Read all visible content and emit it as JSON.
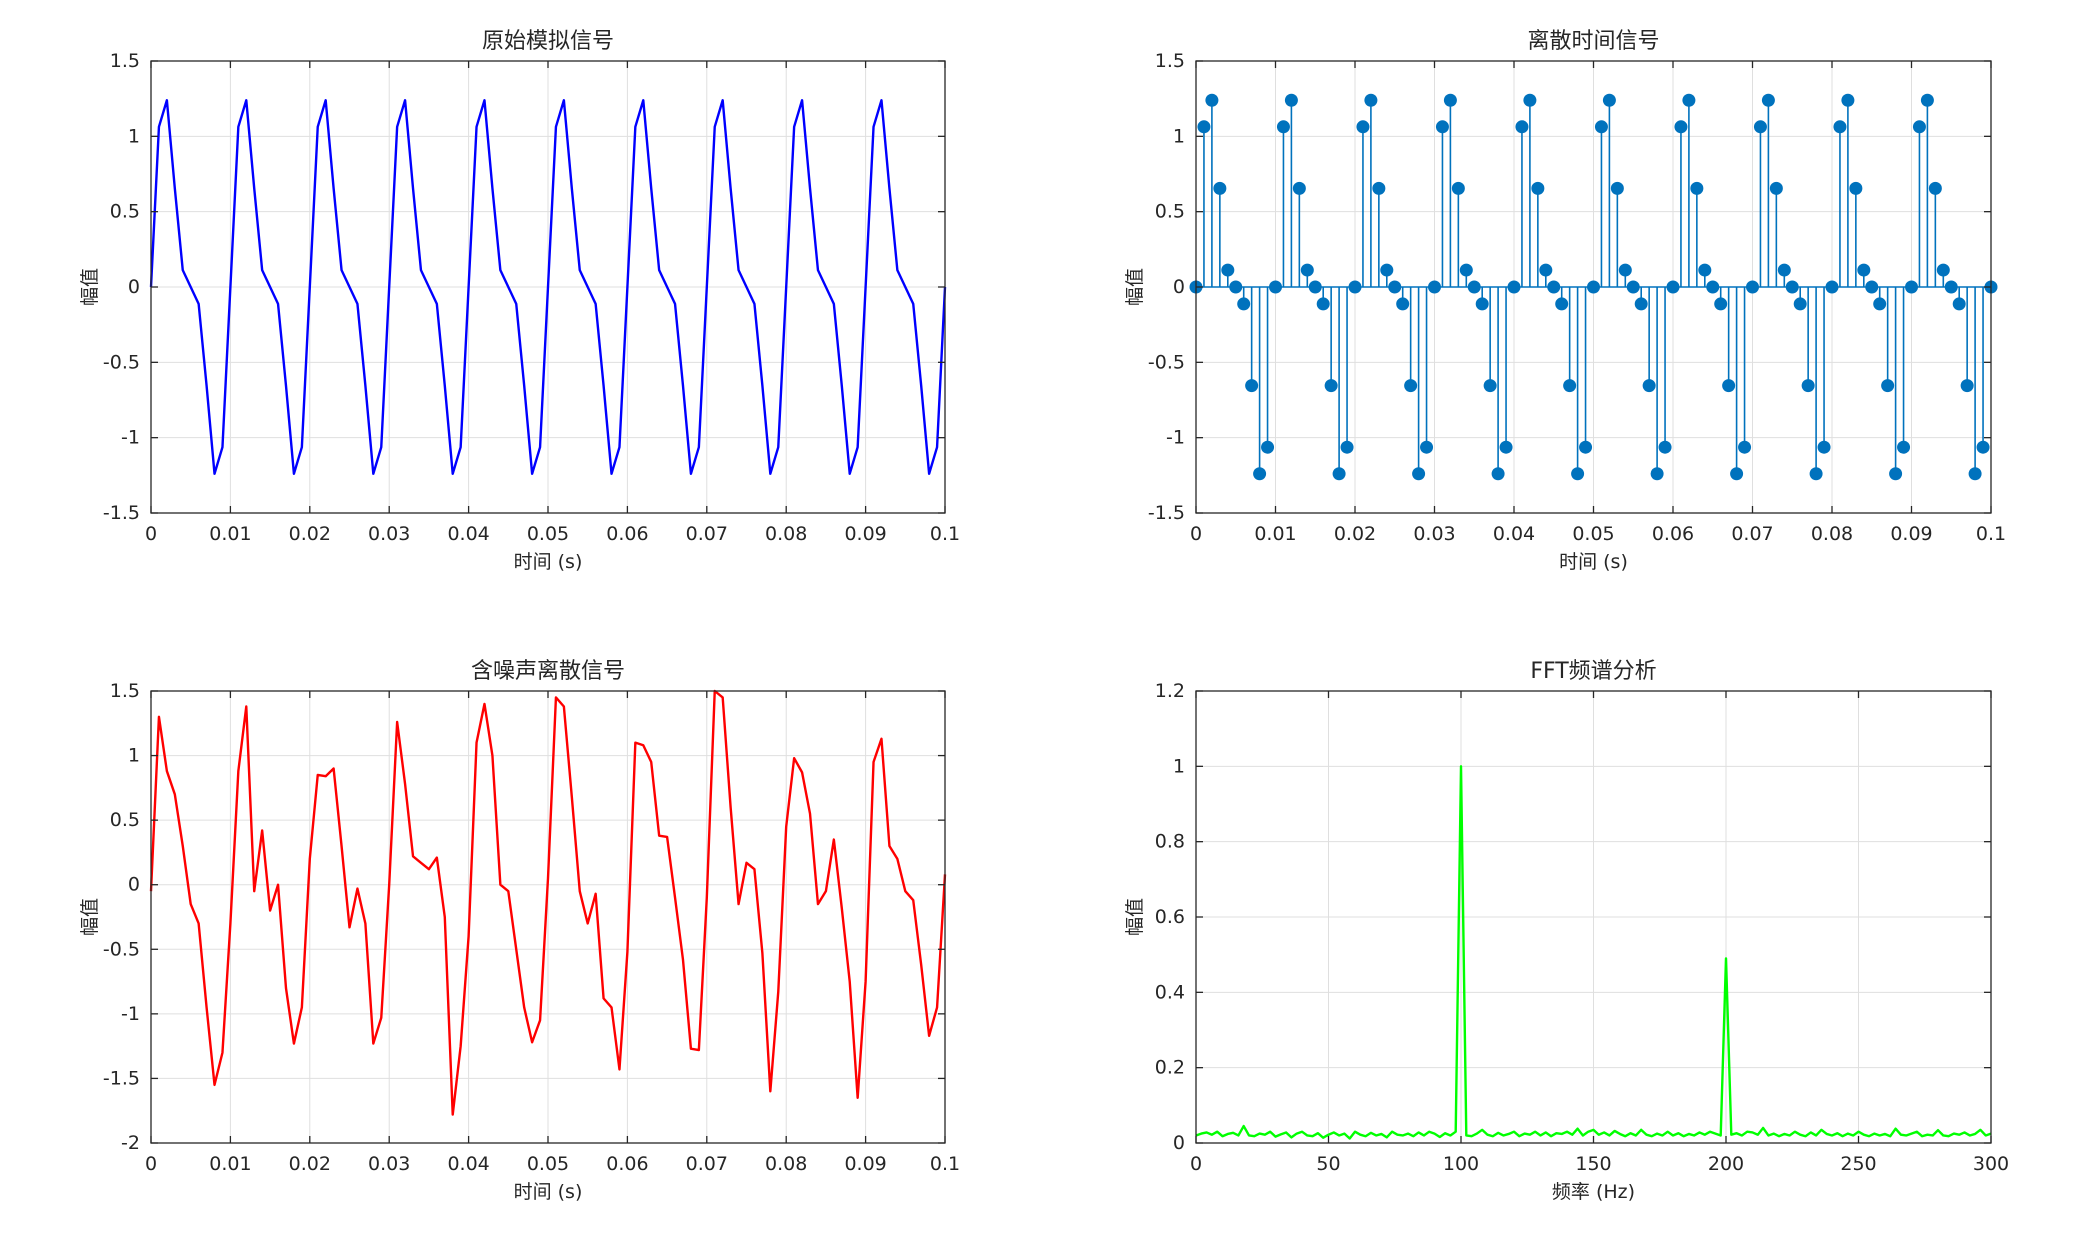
{
  "chart_data": [
    {
      "type": "line",
      "title": "原始模拟信号",
      "xlabel": "时间 (s)",
      "ylabel": "幅值",
      "xlim": [
        0,
        0.1
      ],
      "ylim": [
        -1.5,
        1.5
      ],
      "xticks": [
        0,
        0.01,
        0.02,
        0.03,
        0.04,
        0.05,
        0.06,
        0.07,
        0.08,
        0.09,
        0.1
      ],
      "xtick_labels": [
        "0",
        "0.01",
        "0.02",
        "0.03",
        "0.04",
        "0.05",
        "0.06",
        "0.07",
        "0.08",
        "0.09",
        "0.1"
      ],
      "yticks": [
        -1.5,
        -1,
        -0.5,
        0,
        0.5,
        1,
        1.5
      ],
      "ytick_labels": [
        "-1.5",
        "-1",
        "-0.5",
        "0",
        "0.5",
        "1",
        "1.5"
      ],
      "grid": true,
      "color": "#0000ff",
      "sample_period": 0.001,
      "cycle": [
        0,
        1.0633,
        1.2394,
        0.6545,
        0.1123,
        0,
        -0.1123,
        -0.6545,
        -1.2394,
        -1.0633
      ],
      "cycles": 10,
      "closing_value": 0
    },
    {
      "type": "stem",
      "title": "离散时间信号",
      "xlabel": "时间 (s)",
      "ylabel": "幅值",
      "xlim": [
        0,
        0.1
      ],
      "ylim": [
        -1.5,
        1.5
      ],
      "xticks": [
        0,
        0.01,
        0.02,
        0.03,
        0.04,
        0.05,
        0.06,
        0.07,
        0.08,
        0.09,
        0.1
      ],
      "xtick_labels": [
        "0",
        "0.01",
        "0.02",
        "0.03",
        "0.04",
        "0.05",
        "0.06",
        "0.07",
        "0.08",
        "0.09",
        "0.1"
      ],
      "yticks": [
        -1.5,
        -1,
        -0.5,
        0,
        0.5,
        1,
        1.5
      ],
      "ytick_labels": [
        "-1.5",
        "-1",
        "-0.5",
        "0",
        "0.5",
        "1",
        "1.5"
      ],
      "grid": true,
      "color": "#0072bd",
      "sample_period": 0.001,
      "cycle": [
        0,
        1.0633,
        1.2394,
        0.6545,
        0.1123,
        0,
        -0.1123,
        -0.6545,
        -1.2394,
        -1.0633
      ],
      "cycles": 10,
      "closing_value": 0
    },
    {
      "type": "line",
      "title": "含噪声离散信号",
      "xlabel": "时间 (s)",
      "ylabel": "幅值",
      "xlim": [
        0,
        0.1
      ],
      "ylim": [
        -2,
        1.5
      ],
      "xticks": [
        0,
        0.01,
        0.02,
        0.03,
        0.04,
        0.05,
        0.06,
        0.07,
        0.08,
        0.09,
        0.1
      ],
      "xtick_labels": [
        "0",
        "0.01",
        "0.02",
        "0.03",
        "0.04",
        "0.05",
        "0.06",
        "0.07",
        "0.08",
        "0.09",
        "0.1"
      ],
      "yticks": [
        -2,
        -1.5,
        -1,
        -0.5,
        0,
        0.5,
        1,
        1.5
      ],
      "ytick_labels": [
        "-2",
        "-1.5",
        "-1",
        "-0.5",
        "0",
        "0.5",
        "1",
        "1.5"
      ],
      "grid": true,
      "color": "#ff0000",
      "sample_period": 0.001,
      "values": [
        -0.05,
        1.3,
        0.88,
        0.7,
        0.3,
        -0.15,
        -0.3,
        -0.95,
        -1.55,
        -1.3,
        -0.3,
        0.88,
        1.38,
        -0.05,
        0.42,
        -0.2,
        0.0,
        -0.8,
        -1.23,
        -0.95,
        0.2,
        0.85,
        0.84,
        0.9,
        0.3,
        -0.33,
        -0.03,
        -0.3,
        -1.23,
        -1.03,
        0.0,
        1.26,
        0.78,
        0.22,
        0.17,
        0.12,
        0.21,
        -0.25,
        -1.78,
        -1.25,
        -0.4,
        1.1,
        1.4,
        1.0,
        0.0,
        -0.05,
        -0.5,
        -0.95,
        -1.22,
        -1.05,
        0.05,
        1.45,
        1.38,
        0.68,
        -0.05,
        -0.3,
        -0.07,
        -0.88,
        -0.95,
        -1.43,
        -0.52,
        1.1,
        1.08,
        0.95,
        0.38,
        0.37,
        -0.1,
        -0.58,
        -1.27,
        -1.28,
        -0.1,
        1.5,
        1.45,
        0.6,
        -0.15,
        0.17,
        0.12,
        -0.53,
        -1.6,
        -0.83,
        0.45,
        0.98,
        0.87,
        0.55,
        -0.15,
        -0.05,
        0.35,
        -0.18,
        -0.75,
        -1.65,
        -0.75,
        0.95,
        1.13,
        0.3,
        0.2,
        -0.05,
        -0.12,
        -0.62,
        -1.17,
        -0.95,
        0.08
      ]
    },
    {
      "type": "line",
      "title": "FFT频谱分析",
      "xlabel": "频率 (Hz)",
      "ylabel": "幅值",
      "xlim": [
        0,
        300
      ],
      "ylim": [
        0,
        1.2
      ],
      "xticks": [
        0,
        50,
        100,
        150,
        200,
        250,
        300
      ],
      "xtick_labels": [
        "0",
        "50",
        "100",
        "150",
        "200",
        "250",
        "300"
      ],
      "yticks": [
        0,
        0.2,
        0.4,
        0.6,
        0.8,
        1,
        1.2
      ],
      "ytick_labels": [
        "0",
        "0.2",
        "0.4",
        "0.6",
        "0.8",
        "1",
        "1.2"
      ],
      "grid": true,
      "color": "#00ff00",
      "x_start": 0,
      "x_step": 2,
      "values": [
        0.02,
        0.025,
        0.028,
        0.022,
        0.03,
        0.018,
        0.024,
        0.027,
        0.02,
        0.045,
        0.02,
        0.018,
        0.025,
        0.022,
        0.03,
        0.017,
        0.023,
        0.028,
        0.015,
        0.025,
        0.03,
        0.02,
        0.018,
        0.026,
        0.014,
        0.022,
        0.028,
        0.02,
        0.025,
        0.012,
        0.03,
        0.022,
        0.018,
        0.027,
        0.02,
        0.024,
        0.015,
        0.03,
        0.022,
        0.02,
        0.025,
        0.018,
        0.028,
        0.02,
        0.03,
        0.025,
        0.016,
        0.026,
        0.02,
        0.03,
        1.0,
        0.02,
        0.018,
        0.025,
        0.035,
        0.022,
        0.018,
        0.027,
        0.02,
        0.024,
        0.03,
        0.018,
        0.025,
        0.022,
        0.03,
        0.02,
        0.028,
        0.018,
        0.026,
        0.024,
        0.03,
        0.022,
        0.038,
        0.02,
        0.03,
        0.035,
        0.022,
        0.028,
        0.02,
        0.032,
        0.024,
        0.018,
        0.026,
        0.02,
        0.035,
        0.022,
        0.018,
        0.025,
        0.02,
        0.03,
        0.02,
        0.026,
        0.018,
        0.024,
        0.02,
        0.028,
        0.022,
        0.03,
        0.025,
        0.02,
        0.49,
        0.022,
        0.026,
        0.02,
        0.03,
        0.028,
        0.022,
        0.04,
        0.02,
        0.025,
        0.018,
        0.024,
        0.02,
        0.03,
        0.022,
        0.018,
        0.028,
        0.02,
        0.035,
        0.024,
        0.02,
        0.026,
        0.018,
        0.025,
        0.02,
        0.03,
        0.022,
        0.018,
        0.025,
        0.02,
        0.024,
        0.018,
        0.038,
        0.022,
        0.02,
        0.025,
        0.03,
        0.018,
        0.022,
        0.02,
        0.034,
        0.02,
        0.018,
        0.025,
        0.022,
        0.028,
        0.02,
        0.024,
        0.035,
        0.02,
        0.025
      ]
    }
  ]
}
